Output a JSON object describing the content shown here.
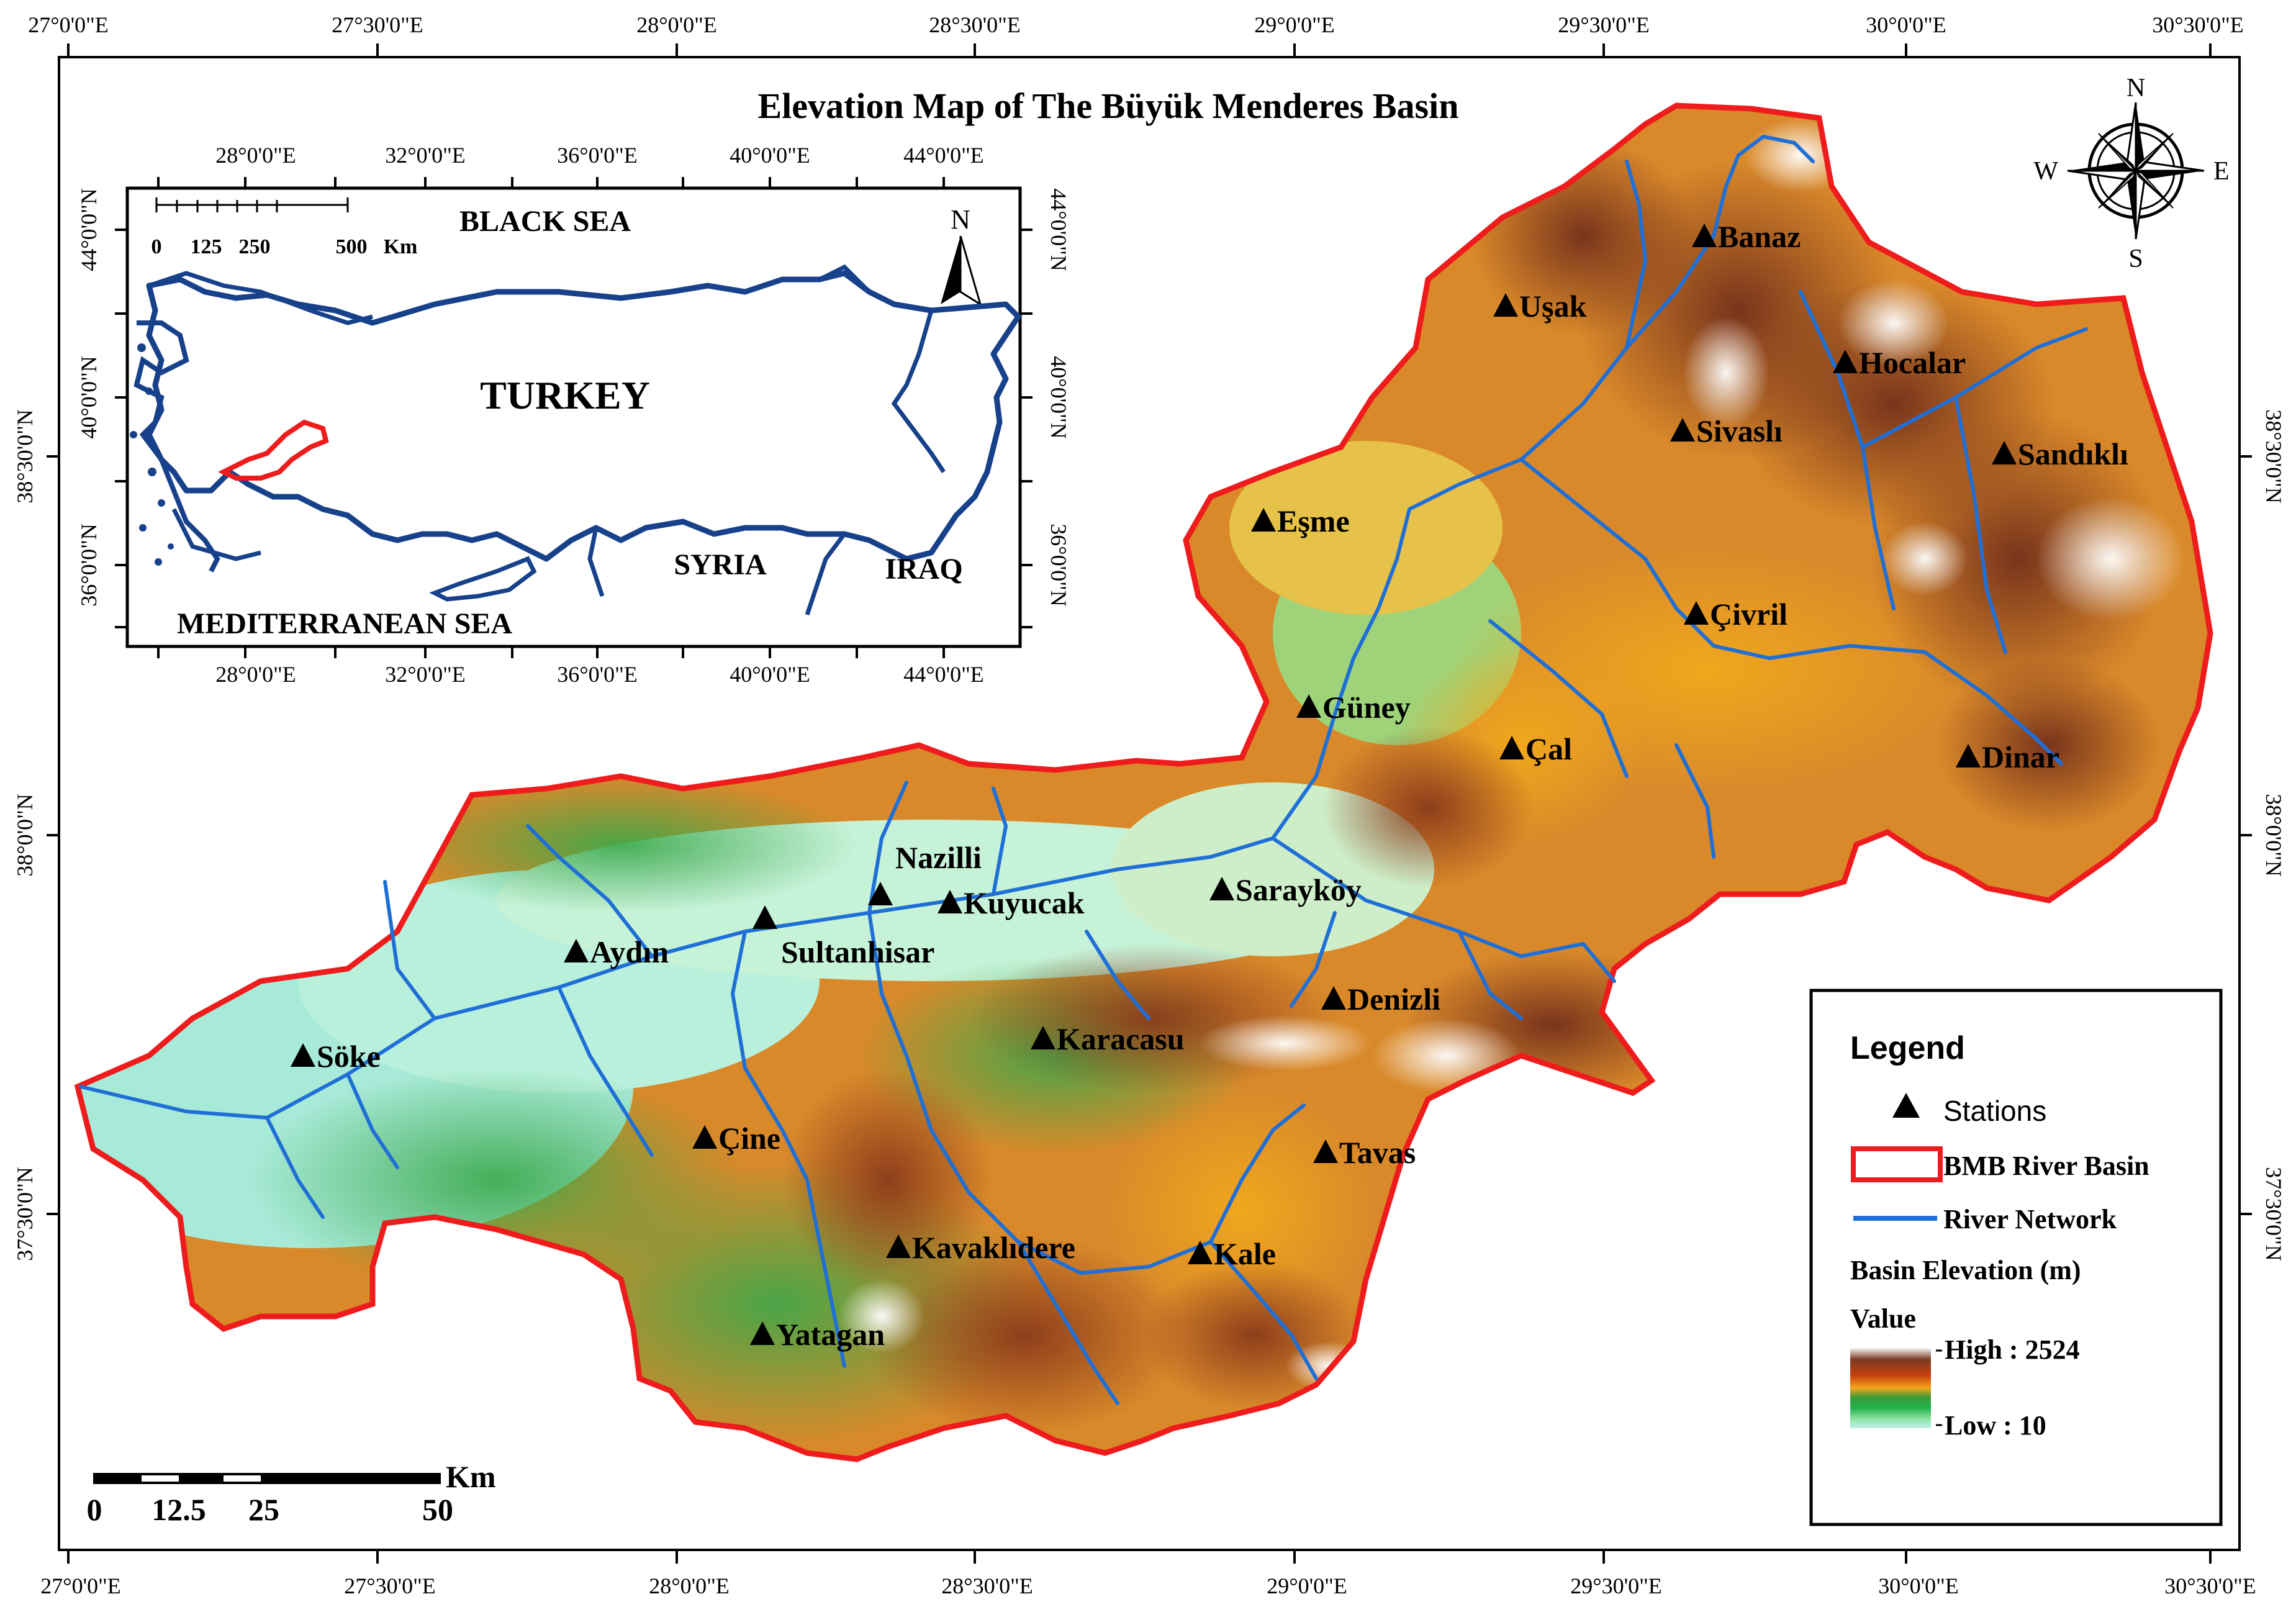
{
  "title": "Elevation Map of The Büyük Menderes Basin",
  "colors": {
    "basin_outline": "#ee1c1c",
    "river": "#1f6fd6",
    "inset_border": "#17418a",
    "inset_basin": "#ee1c1c"
  },
  "axes": {
    "top_lon": [
      "27°0'0\"E",
      "27°30'0\"E",
      "28°0'0\"E",
      "28°30'0\"E",
      "29°0'0\"E",
      "29°30'0\"E",
      "30°0'0\"E",
      "30°30'0\"E"
    ],
    "bottom_lon": [
      "27°0'0\"E",
      "27°30'0\"E",
      "28°0'0\"E",
      "28°30'0\"E",
      "29°0'0\"E",
      "29°30'0\"E",
      "30°0'0\"E",
      "30°30'0\"E"
    ],
    "left_lat": [
      "38°30'0\"N",
      "38°0'0\"N",
      "37°30'0\"N"
    ],
    "right_lat": [
      "38°30'0\"N",
      "38°0'0\"N",
      "37°30'0\"N"
    ]
  },
  "inset": {
    "top_lon": [
      "28°0'0\"E",
      "32°0'0\"E",
      "36°0'0\"E",
      "40°0'0\"E",
      "44°0'0\"E"
    ],
    "bottom_lon": [
      "28°0'0\"E",
      "32°0'0\"E",
      "36°0'0\"E",
      "40°0'0\"E",
      "44°0'0\"E"
    ],
    "left_lat": [
      "44°0'0\"N",
      "40°0'0\"N",
      "36°0'0\"N"
    ],
    "right_lat": [
      "44°0'0\"N",
      "40°0'0\"N",
      "36°0'0\"N"
    ],
    "scale_labels": [
      "0",
      "125",
      "250",
      "500",
      "Km"
    ],
    "north": "N",
    "labels": {
      "black_sea": "BLACK SEA",
      "turkey": "TURKEY",
      "syria": "SYRIA",
      "iraq": "IRAQ",
      "mediterranean": "MEDITERRANEAN SEA"
    }
  },
  "compass": {
    "n": "N",
    "s": "S",
    "e": "E",
    "w": "W"
  },
  "stations": [
    {
      "name": "Banaz"
    },
    {
      "name": "Uşak"
    },
    {
      "name": "Hocalar"
    },
    {
      "name": "Sivaslı"
    },
    {
      "name": "Sandıklı"
    },
    {
      "name": "Eşme"
    },
    {
      "name": "Çivril"
    },
    {
      "name": "Güney"
    },
    {
      "name": "Çal"
    },
    {
      "name": "Dinar"
    },
    {
      "name": "Nazilli"
    },
    {
      "name": "Kuyucak"
    },
    {
      "name": "Sarayköy"
    },
    {
      "name": "Sultanhisar"
    },
    {
      "name": "Aydın"
    },
    {
      "name": "Denizli"
    },
    {
      "name": "Karacasu"
    },
    {
      "name": "Söke"
    },
    {
      "name": "Çine"
    },
    {
      "name": "Tavas"
    },
    {
      "name": "Kavaklıdere"
    },
    {
      "name": "Kale"
    },
    {
      "name": "Yatagan"
    }
  ],
  "scalebar": {
    "labels": [
      "0",
      "12.5",
      "25",
      "50"
    ],
    "unit": "Km"
  },
  "legend": {
    "title": "Legend",
    "stations": "Stations",
    "basin": "BMB River Basin",
    "river": "River Network",
    "elevation_title": "Basin Elevation (m)",
    "value": "Value",
    "high": "High : 2524",
    "low": "Low : 10"
  }
}
